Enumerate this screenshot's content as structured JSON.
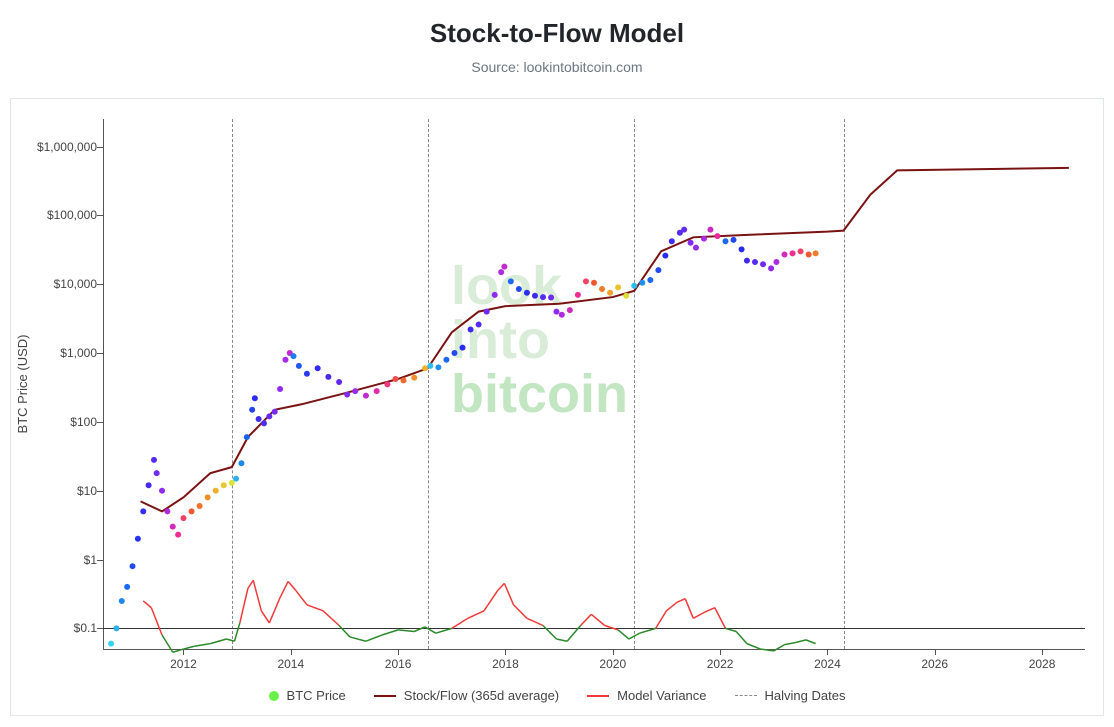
{
  "title": "Stock-to-Flow Model",
  "subtitle": "Source: lookintobitcoin.com",
  "watermark_line1a": "look",
  "watermark_line2a": "into",
  "watermark_line3a": "bitcoin",
  "y_axis_label": "BTC Price (USD)",
  "chart": {
    "type": "line+scatter",
    "x_range_years": [
      2010.5,
      2028.8
    ],
    "y_range_log10": [
      -1.3,
      6.4
    ],
    "y_ticks": [
      {
        "val": 0.1,
        "label": "$0.1"
      },
      {
        "val": 1,
        "label": "$1"
      },
      {
        "val": 10,
        "label": "$10"
      },
      {
        "val": 100,
        "label": "$100"
      },
      {
        "val": 1000,
        "label": "$1,000"
      },
      {
        "val": 10000,
        "label": "$10,000"
      },
      {
        "val": 100000,
        "label": "$100,000"
      },
      {
        "val": 1000000,
        "label": "$1,000,000"
      }
    ],
    "x_ticks": [
      2012,
      2014,
      2016,
      2018,
      2020,
      2022,
      2024,
      2026,
      2028
    ],
    "halving_dates": [
      2012.9,
      2016.55,
      2020.4,
      2024.3
    ],
    "hline_y": 0.1,
    "background_color": "#ffffff",
    "border_color": "#e3e6e8",
    "axis_color": "#555555",
    "stock_flow_color": "#7a1212",
    "variance_pos_color": "#f03a3a",
    "variance_neg_color": "#2a8a2a",
    "rainbow_stops": [
      "#34d1f0",
      "#1a6ff0",
      "#2a2af0",
      "#5d2af0",
      "#a02af0",
      "#f02a9a",
      "#f05a2a",
      "#f0b22a",
      "#d6f03a",
      "#6af04a",
      "#2af0b2",
      "#2ac4f0"
    ],
    "legend": {
      "btc_price": "BTC Price",
      "sf": "Stock/Flow (365d average)",
      "variance": "Model Variance",
      "halving": "Halving Dates",
      "btc_dot_color": "#6af04a",
      "sf_line_color": "#7a1212",
      "variance_line_color": "#f03a3a"
    },
    "stock_flow_line": [
      [
        2011.2,
        7
      ],
      [
        2011.6,
        5
      ],
      [
        2012.0,
        8
      ],
      [
        2012.5,
        18
      ],
      [
        2012.9,
        22
      ],
      [
        2013.2,
        60
      ],
      [
        2013.7,
        150
      ],
      [
        2014.2,
        180
      ],
      [
        2015.0,
        260
      ],
      [
        2016.0,
        420
      ],
      [
        2016.55,
        600
      ],
      [
        2017.0,
        2000
      ],
      [
        2017.5,
        4000
      ],
      [
        2018.0,
        4800
      ],
      [
        2019.0,
        5200
      ],
      [
        2020.0,
        6500
      ],
      [
        2020.4,
        8000
      ],
      [
        2020.9,
        30000
      ],
      [
        2021.5,
        48000
      ],
      [
        2022.5,
        52000
      ],
      [
        2024.0,
        58000
      ],
      [
        2024.3,
        60000
      ],
      [
        2024.8,
        200000
      ],
      [
        2025.3,
        450000
      ],
      [
        2028.5,
        490000
      ]
    ],
    "btc_price": [
      [
        2010.65,
        0.06,
        0
      ],
      [
        2010.75,
        0.1,
        0.03
      ],
      [
        2010.85,
        0.25,
        0.07
      ],
      [
        2010.95,
        0.4,
        0.1
      ],
      [
        2011.05,
        0.8,
        0.14
      ],
      [
        2011.15,
        2,
        0.17
      ],
      [
        2011.25,
        5,
        0.2
      ],
      [
        2011.35,
        12,
        0.23
      ],
      [
        2011.45,
        28,
        0.26
      ],
      [
        2011.5,
        18,
        0.3
      ],
      [
        2011.6,
        10,
        0.34
      ],
      [
        2011.7,
        5,
        0.38
      ],
      [
        2011.8,
        3,
        0.42
      ],
      [
        2011.9,
        2.3,
        0.46
      ],
      [
        2012.0,
        4,
        0.5
      ],
      [
        2012.15,
        5,
        0.54
      ],
      [
        2012.3,
        6,
        0.57
      ],
      [
        2012.45,
        8,
        0.6
      ],
      [
        2012.6,
        10,
        0.63
      ],
      [
        2012.75,
        12,
        0.67
      ],
      [
        2012.9,
        13,
        0.71
      ],
      [
        2012.98,
        15,
        0.03
      ],
      [
        2013.08,
        25,
        0.07
      ],
      [
        2013.18,
        60,
        0.11
      ],
      [
        2013.28,
        150,
        0.15
      ],
      [
        2013.33,
        220,
        0.18
      ],
      [
        2013.4,
        110,
        0.22
      ],
      [
        2013.5,
        95,
        0.25
      ],
      [
        2013.6,
        120,
        0.28
      ],
      [
        2013.7,
        140,
        0.31
      ],
      [
        2013.8,
        300,
        0.34
      ],
      [
        2013.9,
        800,
        0.37
      ],
      [
        2013.98,
        1000,
        0.4
      ],
      [
        2014.05,
        900,
        0.08
      ],
      [
        2014.15,
        650,
        0.12
      ],
      [
        2014.3,
        500,
        0.16
      ],
      [
        2014.5,
        600,
        0.2
      ],
      [
        2014.7,
        450,
        0.24
      ],
      [
        2014.9,
        380,
        0.28
      ],
      [
        2015.05,
        250,
        0.32
      ],
      [
        2015.2,
        280,
        0.36
      ],
      [
        2015.4,
        240,
        0.4
      ],
      [
        2015.6,
        280,
        0.44
      ],
      [
        2015.8,
        350,
        0.48
      ],
      [
        2015.95,
        420,
        0.52
      ],
      [
        2016.1,
        400,
        0.56
      ],
      [
        2016.3,
        440,
        0.6
      ],
      [
        2016.5,
        600,
        0.64
      ],
      [
        2016.6,
        650,
        0.02
      ],
      [
        2016.75,
        620,
        0.06
      ],
      [
        2016.9,
        800,
        0.1
      ],
      [
        2017.05,
        1000,
        0.14
      ],
      [
        2017.2,
        1200,
        0.18
      ],
      [
        2017.35,
        2200,
        0.22
      ],
      [
        2017.5,
        2600,
        0.26
      ],
      [
        2017.65,
        4000,
        0.3
      ],
      [
        2017.8,
        7000,
        0.34
      ],
      [
        2017.92,
        15000,
        0.38
      ],
      [
        2017.98,
        18000,
        0.4
      ],
      [
        2018.1,
        11000,
        0.1
      ],
      [
        2018.25,
        8500,
        0.14
      ],
      [
        2018.4,
        7500,
        0.18
      ],
      [
        2018.55,
        6800,
        0.22
      ],
      [
        2018.7,
        6500,
        0.26
      ],
      [
        2018.85,
        6400,
        0.3
      ],
      [
        2018.95,
        4000,
        0.34
      ],
      [
        2019.05,
        3600,
        0.38
      ],
      [
        2019.2,
        4200,
        0.42
      ],
      [
        2019.35,
        7000,
        0.46
      ],
      [
        2019.5,
        11000,
        0.5
      ],
      [
        2019.65,
        10500,
        0.54
      ],
      [
        2019.8,
        8500,
        0.58
      ],
      [
        2019.95,
        7500,
        0.62
      ],
      [
        2020.1,
        9000,
        0.66
      ],
      [
        2020.25,
        6800,
        0.7
      ],
      [
        2020.4,
        9500,
        0.02
      ],
      [
        2020.55,
        10500,
        0.06
      ],
      [
        2020.7,
        11500,
        0.1
      ],
      [
        2020.85,
        16000,
        0.14
      ],
      [
        2020.98,
        26000,
        0.18
      ],
      [
        2021.1,
        42000,
        0.22
      ],
      [
        2021.25,
        56000,
        0.26
      ],
      [
        2021.33,
        62000,
        0.28
      ],
      [
        2021.45,
        40000,
        0.32
      ],
      [
        2021.55,
        34000,
        0.35
      ],
      [
        2021.7,
        46000,
        0.38
      ],
      [
        2021.82,
        62000,
        0.41
      ],
      [
        2021.95,
        50000,
        0.45
      ],
      [
        2022.1,
        42000,
        0.1
      ],
      [
        2022.25,
        44000,
        0.14
      ],
      [
        2022.4,
        32000,
        0.18
      ],
      [
        2022.5,
        22000,
        0.22
      ],
      [
        2022.65,
        21000,
        0.26
      ],
      [
        2022.8,
        19500,
        0.3
      ],
      [
        2022.95,
        17000,
        0.34
      ],
      [
        2023.05,
        21000,
        0.38
      ],
      [
        2023.2,
        27000,
        0.42
      ],
      [
        2023.35,
        28000,
        0.46
      ],
      [
        2023.5,
        30000,
        0.5
      ],
      [
        2023.65,
        27000,
        0.54
      ],
      [
        2023.78,
        28000,
        0.58
      ]
    ],
    "variance": [
      [
        2011.25,
        0.25
      ],
      [
        2011.4,
        0.2
      ],
      [
        2011.6,
        0.08
      ],
      [
        2011.8,
        0.045
      ],
      [
        2012.0,
        0.05
      ],
      [
        2012.2,
        0.055
      ],
      [
        2012.5,
        0.06
      ],
      [
        2012.8,
        0.07
      ],
      [
        2012.95,
        0.065
      ],
      [
        2013.05,
        0.12
      ],
      [
        2013.2,
        0.38
      ],
      [
        2013.3,
        0.5
      ],
      [
        2013.45,
        0.18
      ],
      [
        2013.6,
        0.12
      ],
      [
        2013.8,
        0.28
      ],
      [
        2013.95,
        0.48
      ],
      [
        2014.1,
        0.35
      ],
      [
        2014.3,
        0.22
      ],
      [
        2014.6,
        0.18
      ],
      [
        2014.9,
        0.11
      ],
      [
        2015.1,
        0.075
      ],
      [
        2015.4,
        0.065
      ],
      [
        2015.7,
        0.08
      ],
      [
        2016.0,
        0.095
      ],
      [
        2016.3,
        0.09
      ],
      [
        2016.5,
        0.105
      ],
      [
        2016.7,
        0.085
      ],
      [
        2017.0,
        0.1
      ],
      [
        2017.3,
        0.14
      ],
      [
        2017.6,
        0.18
      ],
      [
        2017.85,
        0.35
      ],
      [
        2017.98,
        0.45
      ],
      [
        2018.15,
        0.22
      ],
      [
        2018.4,
        0.14
      ],
      [
        2018.7,
        0.11
      ],
      [
        2018.95,
        0.07
      ],
      [
        2019.15,
        0.065
      ],
      [
        2019.4,
        0.11
      ],
      [
        2019.6,
        0.16
      ],
      [
        2019.85,
        0.11
      ],
      [
        2020.1,
        0.095
      ],
      [
        2020.3,
        0.07
      ],
      [
        2020.5,
        0.085
      ],
      [
        2020.8,
        0.1
      ],
      [
        2021.0,
        0.18
      ],
      [
        2021.2,
        0.24
      ],
      [
        2021.35,
        0.27
      ],
      [
        2021.5,
        0.14
      ],
      [
        2021.7,
        0.17
      ],
      [
        2021.9,
        0.2
      ],
      [
        2022.1,
        0.1
      ],
      [
        2022.3,
        0.09
      ],
      [
        2022.5,
        0.06
      ],
      [
        2022.75,
        0.05
      ],
      [
        2023.0,
        0.047
      ],
      [
        2023.2,
        0.058
      ],
      [
        2023.4,
        0.062
      ],
      [
        2023.6,
        0.068
      ],
      [
        2023.78,
        0.06
      ]
    ]
  }
}
